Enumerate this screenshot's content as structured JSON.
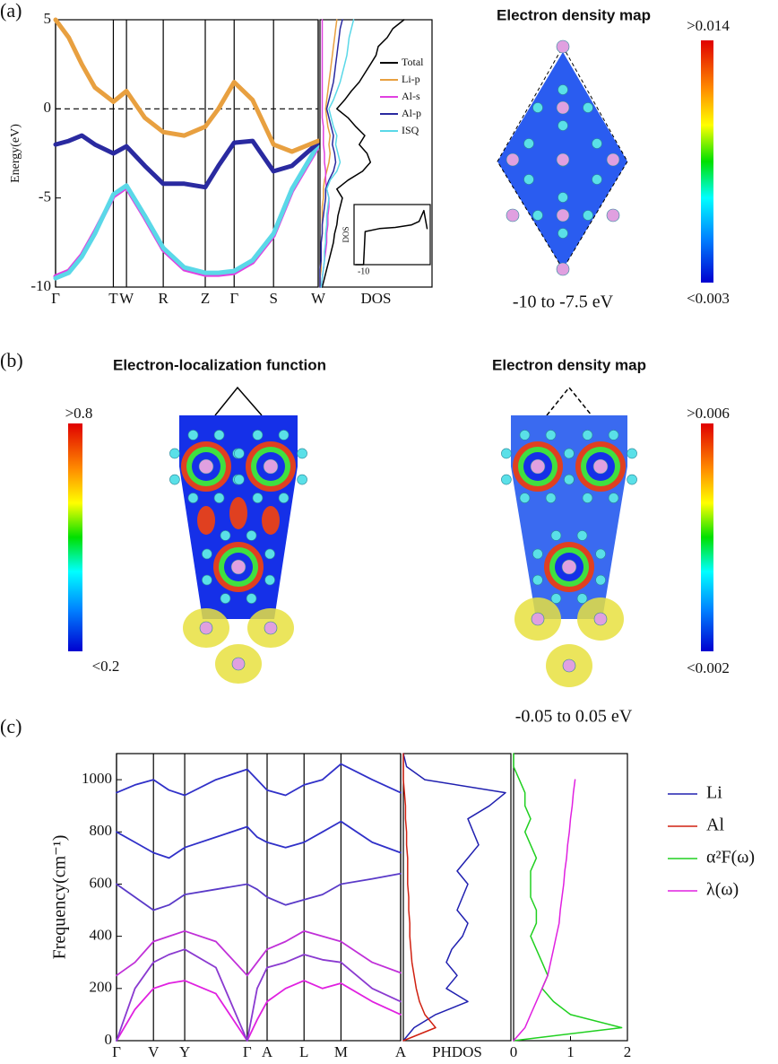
{
  "chart_data": [
    {
      "type": "line",
      "ylabel": "Energy(eV)",
      "x": [
        0,
        0.05,
        0.1,
        0.15,
        0.22,
        0.27,
        0.34,
        0.41,
        0.49,
        0.57,
        0.62,
        0.68,
        0.75,
        0.83,
        0.9,
        1.0
      ],
      "xlim": [
        0,
        1
      ],
      "xticks": [
        {
          "value": 0,
          "label": "Γ"
        },
        {
          "value": 0.22,
          "label": "T"
        },
        {
          "value": 0.27,
          "label": "W"
        },
        {
          "value": 0.41,
          "label": "R"
        },
        {
          "value": 0.57,
          "label": "Z"
        },
        {
          "value": 0.68,
          "label": "Γ"
        },
        {
          "value": 0.83,
          "label": "S"
        },
        {
          "value": 1.0,
          "label": "W"
        }
      ],
      "ylim": [
        -10,
        5
      ],
      "yticks": [
        -10,
        -5,
        0,
        5
      ],
      "grid": "x",
      "reference_line": 0,
      "series": [
        {
          "name": "Al-s",
          "color": "#e040e0",
          "values": [
            -9.4,
            -9.1,
            -8.2,
            -6.9,
            -4.9,
            -4.4,
            -6.1,
            -7.9,
            -9,
            -9.3,
            -9.3,
            -9.2,
            -8.6,
            -7.1,
            -4.6,
            -2.1
          ]
        },
        {
          "name": "ISQ",
          "color": "#5ad8e8",
          "values": [
            -9.5,
            -9.2,
            -8.3,
            -7,
            -4.8,
            -4.3,
            -6,
            -7.8,
            -8.9,
            -9.2,
            -9.2,
            -9.1,
            -8.5,
            -7,
            -4.5,
            -2
          ]
        },
        {
          "name": "Al-p",
          "color": "#2a2aa0",
          "values": [
            -2,
            -1.8,
            -1.5,
            -2,
            -2.5,
            -2.1,
            -3.2,
            -4.2,
            -4.2,
            -4.4,
            -3.2,
            -1.9,
            -1.8,
            -3.5,
            -3.2,
            -1.9
          ]
        },
        {
          "name": "Li-p",
          "color": "#e8a040",
          "values": [
            5,
            4,
            2.5,
            1.2,
            0.4,
            1,
            -0.5,
            -1.3,
            -1.5,
            -1,
            0,
            1.5,
            0.5,
            -2,
            -2.4,
            -1.8
          ]
        }
      ]
    },
    {
      "type": "line",
      "orientation": "horizontal",
      "xlabel": "DOS",
      "y": [
        -10,
        -9.5,
        -9,
        -8.5,
        -8,
        -7.5,
        -7,
        -6.5,
        -6,
        -5.5,
        -5,
        -4.5,
        -4,
        -3.5,
        -3,
        -2.5,
        -2,
        -1.5,
        -1,
        -0.5,
        0,
        0.5,
        1,
        1.5,
        2,
        2.5,
        3,
        3.5,
        4,
        4.5,
        5
      ],
      "ylim": [
        -10,
        5
      ],
      "xlim": [
        0,
        10
      ],
      "legend": "upper right",
      "series": [
        {
          "name": "Total",
          "color": "#000000",
          "values": [
            0.2,
            0.4,
            0.6,
            0.8,
            1.0,
            1.2,
            1.3,
            1.5,
            1.6,
            1.8,
            2.0,
            1.5,
            2.5,
            3.8,
            4.5,
            4.2,
            3.5,
            4,
            3.2,
            2.5,
            1.5,
            2.2,
            2.8,
            3.5,
            4,
            4.5,
            5,
            5.2,
            6,
            6.5,
            7.5
          ]
        },
        {
          "name": "Li-p",
          "color": "#e8a040",
          "values": [
            0,
            0,
            0.1,
            0.1,
            0.1,
            0.1,
            0.2,
            0.2,
            0.2,
            0.2,
            0.3,
            0.3,
            0.4,
            0.6,
            0.8,
            0.9,
            0.8,
            0.9,
            0.7,
            0.6,
            0.5,
            0.6,
            0.7,
            0.8,
            0.9,
            1,
            1.1,
            1.2,
            1.3,
            1.4,
            1.5
          ]
        },
        {
          "name": "Al-s",
          "color": "#e040e0",
          "values": [
            0.1,
            0.2,
            0.3,
            0.4,
            0.5,
            0.6,
            0.6,
            0.7,
            0.7,
            0.8,
            0.8,
            0.6,
            0.5,
            0.5,
            0.4,
            0.4,
            0.3,
            0.3,
            0.3,
            0.2,
            0.2,
            0.2,
            0.2,
            0.2,
            0.2,
            0.2,
            0.2,
            0.2,
            0.2,
            0.2,
            0.2
          ]
        },
        {
          "name": "Al-p",
          "color": "#2a2aa0",
          "values": [
            0,
            0,
            0,
            0.1,
            0.1,
            0.1,
            0.2,
            0.2,
            0.3,
            0.4,
            0.5,
            0.5,
            0.8,
            1.2,
            1.4,
            1.3,
            1.1,
            1.2,
            1,
            0.8,
            0.6,
            0.8,
            1,
            1.2,
            1.3,
            1.4,
            1.5,
            1.6,
            1.7,
            1.8,
            2
          ]
        },
        {
          "name": "ISQ",
          "color": "#5ad8e8",
          "values": [
            0.1,
            0.2,
            0.3,
            0.4,
            0.4,
            0.5,
            0.5,
            0.6,
            0.6,
            0.7,
            0.8,
            0.6,
            0.9,
            1.5,
            1.8,
            1.6,
            1.4,
            1.5,
            1.2,
            1,
            0.8,
            1.2,
            1.5,
            1.8,
            2,
            2.2,
            2.4,
            2.5,
            2.6,
            2.8,
            3
          ]
        }
      ]
    },
    {
      "type": "line",
      "ylabel": "DOS",
      "x": [
        -10.5,
        -10,
        -9.9,
        -9,
        -8,
        -7,
        -6.5,
        -6.2,
        -6
      ],
      "xlim": [
        -10.6,
        -5.8
      ],
      "xticks": [
        -10
      ],
      "ylim": [
        0,
        1
      ],
      "series": [
        {
          "color": "#000000",
          "values": [
            0,
            0,
            0.55,
            0.6,
            0.62,
            0.66,
            0.72,
            0.9,
            0.6
          ]
        }
      ]
    },
    {
      "type": "line",
      "ylabel": "Frequency(cm⁻¹)",
      "x": [
        0,
        0.065,
        0.13,
        0.185,
        0.24,
        0.35,
        0.46,
        0.495,
        0.53,
        0.595,
        0.66,
        0.725,
        0.79,
        0.9,
        1.0
      ],
      "xlim": [
        0,
        1
      ],
      "xticks": [
        {
          "value": 0,
          "label": "Γ"
        },
        {
          "value": 0.13,
          "label": "V"
        },
        {
          "value": 0.24,
          "label": "Y"
        },
        {
          "value": 0.46,
          "label": "Γ"
        },
        {
          "value": 0.53,
          "label": "A"
        },
        {
          "value": 0.66,
          "label": "L"
        },
        {
          "value": 0.79,
          "label": "M"
        },
        {
          "value": 1.0,
          "label": "A"
        }
      ],
      "ylim": [
        0,
        1100
      ],
      "yticks": [
        0,
        200,
        400,
        600,
        800,
        1000
      ],
      "grid": "x",
      "series": [
        {
          "color": "#e020e0",
          "values": [
            0,
            120,
            200,
            220,
            230,
            180,
            0,
            80,
            150,
            200,
            230,
            200,
            220,
            150,
            100
          ]
        },
        {
          "color": "#8a3ad0",
          "values": [
            0,
            200,
            300,
            330,
            350,
            280,
            0,
            200,
            280,
            300,
            330,
            310,
            300,
            200,
            150
          ]
        },
        {
          "color": "#c030d8",
          "values": [
            250,
            300,
            380,
            400,
            420,
            380,
            250,
            300,
            350,
            380,
            420,
            400,
            380,
            300,
            260
          ]
        },
        {
          "color": "#5a3ac8",
          "values": [
            600,
            550,
            500,
            520,
            560,
            580,
            600,
            580,
            550,
            520,
            540,
            560,
            600,
            620,
            640
          ]
        },
        {
          "color": "#3030c8",
          "values": [
            800,
            760,
            720,
            700,
            740,
            780,
            820,
            780,
            760,
            740,
            760,
            800,
            840,
            760,
            720
          ]
        },
        {
          "color": "#3030c8",
          "values": [
            950,
            980,
            1000,
            960,
            940,
            1000,
            1040,
            1000,
            960,
            940,
            980,
            1000,
            1060,
            1000,
            950
          ]
        }
      ]
    },
    {
      "type": "line",
      "orientation": "horizontal",
      "xlabel": "PHDOS",
      "y": [
        0,
        50,
        100,
        150,
        200,
        250,
        300,
        350,
        400,
        450,
        500,
        550,
        600,
        650,
        700,
        750,
        800,
        850,
        900,
        950,
        1000,
        1050,
        1100
      ],
      "ylim": [
        0,
        1100
      ],
      "xlim": [
        0,
        10
      ],
      "legend": "outside right",
      "series": [
        {
          "name": "Li",
          "color": "#2020b0",
          "values": [
            0,
            1,
            3,
            6,
            4,
            5,
            4,
            4.5,
            5.5,
            6,
            5,
            5.5,
            6,
            5,
            6,
            7,
            6.5,
            6,
            8,
            9.5,
            2,
            0.3,
            0
          ]
        },
        {
          "name": "Al",
          "color": "#d02010",
          "values": [
            0,
            3,
            2,
            1.5,
            1.2,
            1,
            0.8,
            0.7,
            0.6,
            0.6,
            0.5,
            0.5,
            0.4,
            0.4,
            0.4,
            0.3,
            0.3,
            0.2,
            0.2,
            0.1,
            0,
            0,
            0
          ]
        }
      ]
    },
    {
      "type": "line",
      "orientation": "horizontal",
      "y": [
        0,
        50,
        100,
        150,
        200,
        250,
        300,
        350,
        400,
        450,
        500,
        550,
        600,
        650,
        700,
        750,
        800,
        850,
        900,
        950,
        1000,
        1050,
        1100
      ],
      "ylim": [
        0,
        1100
      ],
      "xlim": [
        0,
        2
      ],
      "xticks": [
        0,
        1,
        2
      ],
      "legend": "outside right",
      "series": [
        {
          "name": "α²F(ω)",
          "color": "#20d020",
          "values": [
            0,
            1.9,
            1,
            0.7,
            0.5,
            0.6,
            0.5,
            0.4,
            0.3,
            0.4,
            0.4,
            0.3,
            0.3,
            0.3,
            0.4,
            0.3,
            0.2,
            0.3,
            0.2,
            0.2,
            0.1,
            0,
            0
          ]
        },
        {
          "name": "λ(ω)",
          "color": "#e020e0",
          "values": [
            0,
            0.2,
            0.3,
            0.4,
            0.5,
            0.6,
            0.65,
            0.7,
            0.75,
            0.8,
            0.82,
            0.85,
            0.88,
            0.9,
            0.93,
            0.95,
            0.98,
            1.0,
            1.03,
            1.05,
            1.08,
            null,
            null
          ]
        }
      ]
    }
  ],
  "panels": {
    "a": {
      "label": "(a)",
      "map_title": "Electron density map",
      "scale_max": ">0.014",
      "scale_min": "<0.003",
      "energy_range": "-10 to -7.5 eV"
    },
    "b": {
      "label": "(b)",
      "elf_title": "Electron-localization function",
      "elf_max": ">0.8",
      "elf_min": "<0.2",
      "map_title": "Electron density map",
      "scale_max": ">0.006",
      "scale_min": "<0.002",
      "energy_range": "-0.05 to 0.05 eV"
    },
    "c": {
      "label": "(c)"
    }
  }
}
